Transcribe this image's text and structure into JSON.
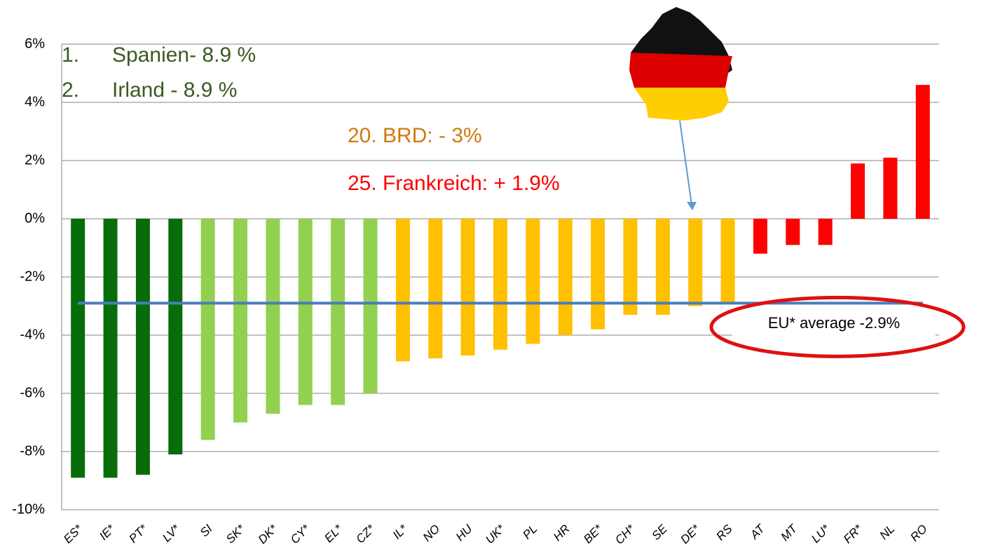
{
  "chart_data": {
    "type": "bar",
    "categories": [
      "ES*",
      "IE*",
      "PT*",
      "LV*",
      "SI",
      "SK*",
      "DK*",
      "CY*",
      "EL*",
      "CZ*",
      "IL*",
      "NO",
      "HU",
      "UK*",
      "PL",
      "HR",
      "BE*",
      "CH*",
      "SE",
      "DE*",
      "RS",
      "AT",
      "MT",
      "LU*",
      "FR*",
      "NL",
      "RO"
    ],
    "values": [
      -8.9,
      -8.9,
      -8.8,
      -8.1,
      -7.6,
      -7.0,
      -6.7,
      -6.4,
      -6.4,
      -6.0,
      -4.9,
      -4.8,
      -4.7,
      -4.5,
      -4.3,
      -4.0,
      -3.8,
      -3.3,
      -3.3,
      -3.0,
      -2.9,
      -1.2,
      -0.9,
      -0.9,
      1.9,
      2.1,
      4.6
    ],
    "colors": [
      "#086c0a",
      "#086c0a",
      "#086c0a",
      "#086c0a",
      "#92d050",
      "#92d050",
      "#92d050",
      "#92d050",
      "#92d050",
      "#92d050",
      "#ffc000",
      "#ffc000",
      "#ffc000",
      "#ffc000",
      "#ffc000",
      "#ffc000",
      "#ffc000",
      "#ffc000",
      "#ffc000",
      "#ffc000",
      "#ffc000",
      "#ff0000",
      "#ff0000",
      "#ff0000",
      "#ff0000",
      "#ff0000",
      "#ff0000"
    ],
    "ylim": [
      -10,
      6
    ],
    "yticks": [
      {
        "value": -10,
        "label": "-10%"
      },
      {
        "value": -8,
        "label": "-8%"
      },
      {
        "value": -6,
        "label": "-6%"
      },
      {
        "value": -4,
        "label": "-4%"
      },
      {
        "value": -2,
        "label": "-2%"
      },
      {
        "value": 0,
        "label": "0%"
      },
      {
        "value": 2,
        "label": "2%"
      },
      {
        "value": 4,
        "label": "4%"
      },
      {
        "value": 6,
        "label": "6%"
      }
    ],
    "grid": true,
    "average": {
      "value": -2.9,
      "label": "EU* average -2.9%",
      "color": "#4a7ebb"
    },
    "ranking": [
      {
        "number": "1.",
        "text": "Spanien- 8.9 %"
      },
      {
        "number": "2.",
        "text": "Irland - 8.9 %"
      }
    ],
    "annotations": [
      {
        "text": "20. BRD: - 3%",
        "color": "#d07a10"
      },
      {
        "text": "25. Frankreich: + 1.9%",
        "color": "#ff0000"
      }
    ]
  }
}
